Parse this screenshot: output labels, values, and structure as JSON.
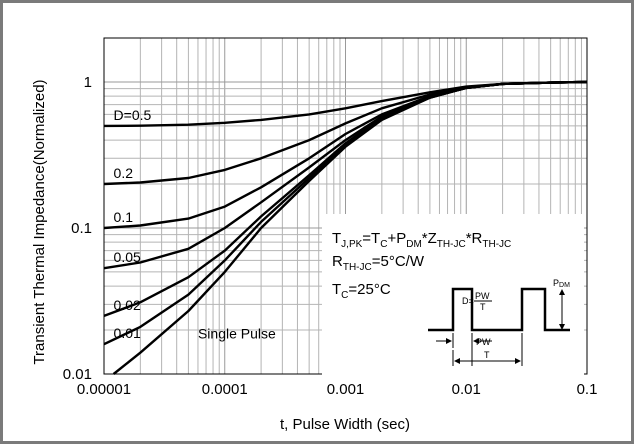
{
  "chart_data": {
    "type": "line",
    "title": "",
    "xlabel": "t, Pulse Width (sec)",
    "ylabel": "Transient Thermal Impedance(Normalized)",
    "x_scale": "log",
    "y_scale": "log",
    "xlim": [
      1e-05,
      0.1
    ],
    "ylim": [
      0.01,
      2
    ],
    "x_ticks": [
      {
        "value": 1e-05,
        "label": "0.00001"
      },
      {
        "value": 0.0001,
        "label": "0.0001"
      },
      {
        "value": 0.001,
        "label": "0.001"
      },
      {
        "value": 0.01,
        "label": "0.01"
      },
      {
        "value": 0.1,
        "label": "0.1"
      }
    ],
    "y_ticks": [
      {
        "value": 1,
        "label": "1"
      },
      {
        "value": 0.1,
        "label": "0.1"
      },
      {
        "value": 0.01,
        "label": "0.01"
      }
    ],
    "grid": true,
    "series": [
      {
        "name": "D=0.5",
        "x": [
          1e-05,
          2e-05,
          5e-05,
          0.0001,
          0.0002,
          0.0005,
          0.001,
          0.002,
          0.005,
          0.01,
          0.02,
          0.05,
          0.1
        ],
        "y": [
          0.5,
          0.502,
          0.51,
          0.525,
          0.55,
          0.6,
          0.66,
          0.74,
          0.85,
          0.93,
          0.97,
          0.99,
          1.0
        ]
      },
      {
        "name": "0.2",
        "x": [
          1e-05,
          2e-05,
          5e-05,
          0.0001,
          0.0002,
          0.0005,
          0.001,
          0.002,
          0.005,
          0.01,
          0.02,
          0.05,
          0.1
        ],
        "y": [
          0.2,
          0.205,
          0.22,
          0.25,
          0.3,
          0.4,
          0.52,
          0.66,
          0.82,
          0.92,
          0.97,
          0.99,
          1.0
        ]
      },
      {
        "name": "0.1",
        "x": [
          1e-05,
          2e-05,
          5e-05,
          0.0001,
          0.0002,
          0.0005,
          0.001,
          0.002,
          0.005,
          0.01,
          0.02,
          0.05,
          0.1
        ],
        "y": [
          0.1,
          0.104,
          0.116,
          0.14,
          0.19,
          0.3,
          0.44,
          0.6,
          0.8,
          0.91,
          0.97,
          0.99,
          1.0
        ]
      },
      {
        "name": "0.05",
        "x": [
          1e-05,
          2e-05,
          5e-05,
          0.0001,
          0.0002,
          0.0005,
          0.001,
          0.002,
          0.005,
          0.01,
          0.02,
          0.05,
          0.1
        ],
        "y": [
          0.053,
          0.058,
          0.072,
          0.1,
          0.15,
          0.26,
          0.4,
          0.58,
          0.79,
          0.91,
          0.97,
          0.99,
          1.0
        ]
      },
      {
        "name": "0.02",
        "x": [
          1e-05,
          2e-05,
          5e-05,
          0.0001,
          0.0002,
          0.0005,
          0.001,
          0.002,
          0.005,
          0.01,
          0.02,
          0.05,
          0.1
        ],
        "y": [
          0.025,
          0.031,
          0.046,
          0.07,
          0.12,
          0.23,
          0.38,
          0.57,
          0.79,
          0.91,
          0.97,
          0.99,
          1.0
        ]
      },
      {
        "name": "0.01",
        "x": [
          1e-05,
          2e-05,
          5e-05,
          0.0001,
          0.0002,
          0.0005,
          0.001,
          0.002,
          0.005,
          0.01,
          0.02,
          0.05,
          0.1
        ],
        "y": [
          0.016,
          0.021,
          0.035,
          0.06,
          0.11,
          0.22,
          0.37,
          0.56,
          0.78,
          0.91,
          0.97,
          0.99,
          1.0
        ]
      },
      {
        "name": "Single Pulse",
        "x": [
          1.2e-05,
          2e-05,
          5e-05,
          0.0001,
          0.0002,
          0.0005,
          0.001,
          0.002,
          0.005,
          0.01,
          0.02,
          0.05,
          0.1
        ],
        "y": [
          0.01,
          0.014,
          0.027,
          0.05,
          0.1,
          0.21,
          0.36,
          0.55,
          0.78,
          0.91,
          0.97,
          0.99,
          1.0
        ]
      }
    ],
    "series_label_x": 1.2e-05,
    "annotations": {
      "eq1_parts": [
        "T",
        "J,PK",
        "=T",
        "C",
        "+P",
        "DM",
        "*Z",
        "TH-JC",
        "*R",
        "TH-JC"
      ],
      "eq2_parts": [
        "R",
        "TH-JC",
        "=5°C/W"
      ],
      "eq3_parts": [
        "T",
        "C",
        "=25°C"
      ],
      "pulse_labels": {
        "pdm": "P",
        "pdm_sub": "DM",
        "d_eq": "D=",
        "pw_num": "PW",
        "t_den": "T",
        "pw": "PW",
        "t": "T"
      }
    }
  }
}
